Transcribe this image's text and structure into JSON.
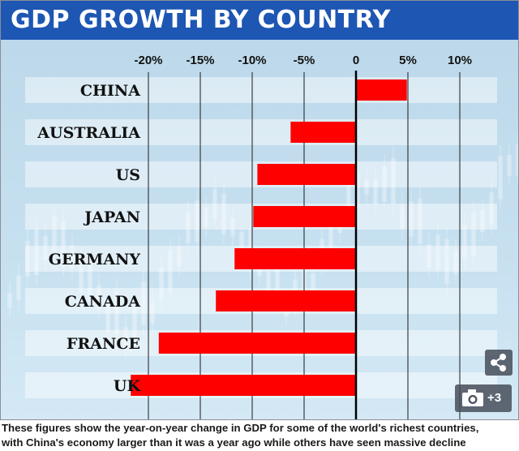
{
  "chart_data": {
    "type": "bar",
    "orientation": "horizontal",
    "title": "GDP GROWTH BY COUNTRY",
    "categories": [
      "CHINA",
      "AUSTRALIA",
      "US",
      "JAPAN",
      "GERMANY",
      "CANADA",
      "FRANCE",
      "UK"
    ],
    "values": [
      4.9,
      -6.3,
      -9.5,
      -9.9,
      -11.7,
      -13.5,
      -19.0,
      -21.7
    ],
    "xlim": [
      -22,
      14
    ],
    "xticks": [
      -20,
      -15,
      -10,
      -5,
      0,
      5,
      10
    ],
    "xtick_labels": [
      "-20%",
      "-15%",
      "-10%",
      "-5%",
      "0",
      "5%",
      "10%"
    ],
    "xlabel": "",
    "ylabel": "",
    "grid": true,
    "bar_color": "#ff0000"
  },
  "overlay": {
    "photo_count": "+3"
  },
  "icons": {
    "share": "share-icon",
    "camera": "camera-icon"
  },
  "caption": {
    "line1": "These figures show the year-on-year change in GDP for some of the world's richest countries,",
    "line2": "with China's economy larger than it was a year ago while others have seen massive decline"
  }
}
